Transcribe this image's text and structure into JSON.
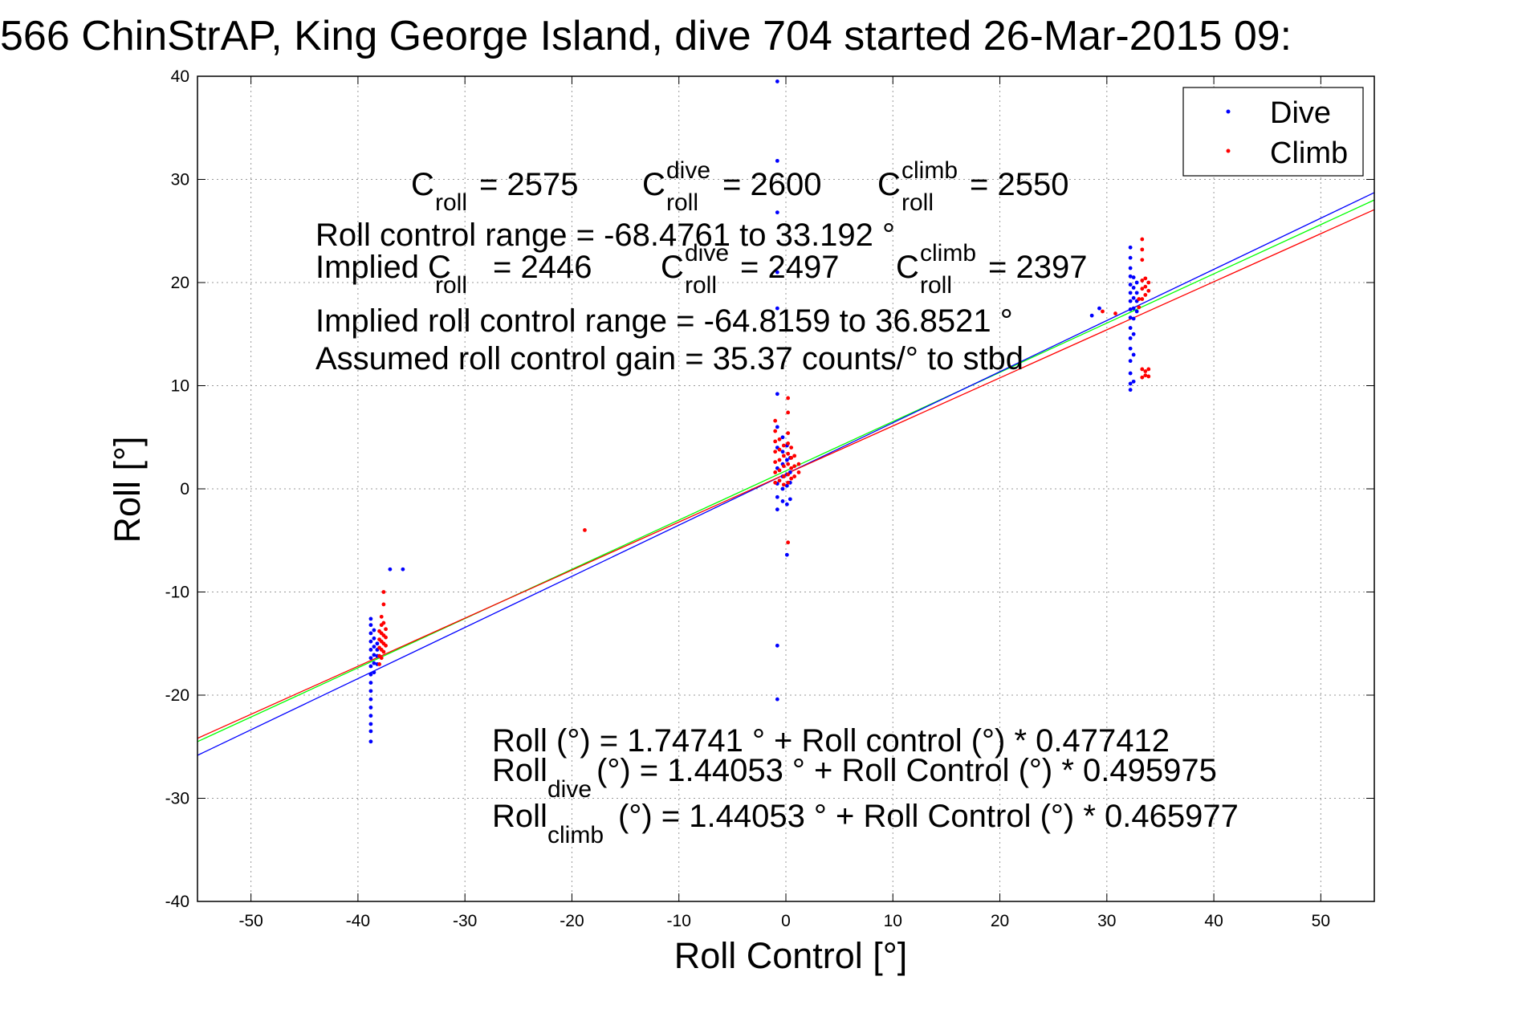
{
  "chart_data": {
    "type": "scatter",
    "title": "566 ChinStrAP, King George Island, dive 704 started 26-Mar-2015 09:",
    "xlabel": "Roll Control [°]",
    "ylabel": "Roll [°]",
    "xlim": [
      -55,
      55
    ],
    "ylim": [
      -40,
      40
    ],
    "xticks": [
      "-50",
      "-40",
      "-30",
      "-20",
      "-10",
      "0",
      "10",
      "20",
      "30",
      "40",
      "50"
    ],
    "yticks": [
      "40",
      "30",
      "20",
      "10",
      "0",
      "-10",
      "-20",
      "-30",
      "-40"
    ],
    "grid": true,
    "legend_position": "top-right",
    "legend": [
      {
        "label": "Dive",
        "color": "#0000ff"
      },
      {
        "label": "Climb",
        "color": "#ff0000"
      }
    ],
    "series": [
      {
        "name": "Dive",
        "color": "#0000ff",
        "points": [
          [
            -38.8,
            -24.5
          ],
          [
            -38.8,
            -23.5
          ],
          [
            -38.8,
            -22.8
          ],
          [
            -38.8,
            -22.0
          ],
          [
            -38.8,
            -21.2
          ],
          [
            -38.8,
            -20.4
          ],
          [
            -38.8,
            -19.6
          ],
          [
            -38.8,
            -18.8
          ],
          [
            -38.8,
            -18.0
          ],
          [
            -38.8,
            -17.2
          ],
          [
            -38.8,
            -16.4
          ],
          [
            -38.8,
            -15.6
          ],
          [
            -38.8,
            -14.8
          ],
          [
            -38.8,
            -14.0
          ],
          [
            -38.8,
            -13.2
          ],
          [
            -38.8,
            -12.6
          ],
          [
            -38.5,
            -17.8
          ],
          [
            -38.5,
            -16.9
          ],
          [
            -38.5,
            -16.1
          ],
          [
            -38.5,
            -15.3
          ],
          [
            -38.5,
            -14.5
          ],
          [
            -38.5,
            -13.7
          ],
          [
            -38.2,
            -17.0
          ],
          [
            -38.2,
            -16.2
          ],
          [
            -38.2,
            -15.6
          ],
          [
            -38.2,
            -15.0
          ],
          [
            -37.0,
            -7.8
          ],
          [
            -35.8,
            -7.8
          ],
          [
            -0.8,
            39.5
          ],
          [
            -0.8,
            31.8
          ],
          [
            -0.8,
            26.8
          ],
          [
            -0.8,
            21.0
          ],
          [
            -0.8,
            17.5
          ],
          [
            -0.8,
            9.2
          ],
          [
            -0.8,
            6.0
          ],
          [
            -0.8,
            4.0
          ],
          [
            -0.8,
            2.0
          ],
          [
            -0.8,
            0.5
          ],
          [
            -0.8,
            -0.8
          ],
          [
            -0.8,
            -2.0
          ],
          [
            -0.8,
            -15.2
          ],
          [
            -0.8,
            -20.4
          ],
          [
            -0.3,
            5.0
          ],
          [
            -0.3,
            3.6
          ],
          [
            -0.3,
            2.4
          ],
          [
            -0.3,
            1.2
          ],
          [
            -0.3,
            0.0
          ],
          [
            -0.3,
            -1.2
          ],
          [
            0.1,
            4.2
          ],
          [
            0.1,
            2.8
          ],
          [
            0.1,
            1.4
          ],
          [
            0.1,
            0.3
          ],
          [
            0.1,
            -1.5
          ],
          [
            0.1,
            -6.4
          ],
          [
            0.4,
            3.0
          ],
          [
            0.4,
            1.6
          ],
          [
            0.4,
            0.6
          ],
          [
            0.4,
            -1.0
          ],
          [
            28.6,
            16.8
          ],
          [
            29.3,
            17.5
          ],
          [
            32.2,
            23.4
          ],
          [
            32.2,
            22.4
          ],
          [
            32.2,
            21.4
          ],
          [
            32.2,
            20.6
          ],
          [
            32.2,
            19.8
          ],
          [
            32.2,
            19.0
          ],
          [
            32.2,
            18.2
          ],
          [
            32.2,
            17.4
          ],
          [
            32.2,
            16.6
          ],
          [
            32.2,
            15.6
          ],
          [
            32.2,
            14.6
          ],
          [
            32.2,
            13.6
          ],
          [
            32.2,
            12.4
          ],
          [
            32.2,
            11.2
          ],
          [
            32.2,
            10.2
          ],
          [
            32.2,
            9.6
          ],
          [
            32.5,
            20.5
          ],
          [
            32.5,
            19.5
          ],
          [
            32.5,
            18.5
          ],
          [
            32.5,
            17.5
          ],
          [
            32.5,
            16.5
          ],
          [
            32.5,
            15.0
          ],
          [
            32.5,
            13.0
          ],
          [
            32.5,
            10.4
          ],
          [
            32.8,
            20.0
          ],
          [
            32.8,
            19.0
          ],
          [
            32.8,
            18.2
          ],
          [
            32.8,
            17.2
          ]
        ]
      },
      {
        "name": "Climb",
        "color": "#ff0000",
        "points": [
          [
            -38.0,
            -17.0
          ],
          [
            -38.0,
            -16.2
          ],
          [
            -38.0,
            -15.4
          ],
          [
            -38.0,
            -14.6
          ],
          [
            -38.0,
            -13.8
          ],
          [
            -37.8,
            -16.4
          ],
          [
            -37.8,
            -15.6
          ],
          [
            -37.8,
            -14.8
          ],
          [
            -37.8,
            -14.0
          ],
          [
            -37.8,
            -13.2
          ],
          [
            -37.8,
            -12.4
          ],
          [
            -37.6,
            -15.8
          ],
          [
            -37.6,
            -15.0
          ],
          [
            -37.6,
            -14.2
          ],
          [
            -37.6,
            -13.0
          ],
          [
            -37.6,
            -11.2
          ],
          [
            -37.6,
            -10.0
          ],
          [
            -37.4,
            -15.2
          ],
          [
            -37.4,
            -14.4
          ],
          [
            -37.4,
            -13.6
          ],
          [
            -18.8,
            -4.0
          ],
          [
            -1.0,
            6.6
          ],
          [
            -1.0,
            5.6
          ],
          [
            -1.0,
            4.6
          ],
          [
            -1.0,
            3.6
          ],
          [
            -1.0,
            2.6
          ],
          [
            -1.0,
            1.6
          ],
          [
            -1.0,
            0.6
          ],
          [
            -0.6,
            4.8
          ],
          [
            -0.6,
            3.8
          ],
          [
            -0.6,
            2.8
          ],
          [
            -0.6,
            1.8
          ],
          [
            -0.6,
            0.8
          ],
          [
            -0.2,
            4.2
          ],
          [
            -0.2,
            3.2
          ],
          [
            -0.2,
            2.2
          ],
          [
            -0.2,
            1.2
          ],
          [
            -0.2,
            0.4
          ],
          [
            0.2,
            8.8
          ],
          [
            0.2,
            7.4
          ],
          [
            0.2,
            5.4
          ],
          [
            0.2,
            4.4
          ],
          [
            0.2,
            3.4
          ],
          [
            0.2,
            2.4
          ],
          [
            0.2,
            1.4
          ],
          [
            0.2,
            0.6
          ],
          [
            0.2,
            -5.2
          ],
          [
            0.5,
            4.0
          ],
          [
            0.5,
            3.0
          ],
          [
            0.5,
            2.0
          ],
          [
            0.5,
            1.0
          ],
          [
            0.8,
            3.2
          ],
          [
            0.8,
            2.2
          ],
          [
            0.8,
            1.2
          ],
          [
            1.2,
            2.4
          ],
          [
            1.2,
            1.6
          ],
          [
            29.6,
            17.2
          ],
          [
            30.8,
            17.0
          ],
          [
            33.0,
            18.4
          ],
          [
            33.0,
            17.6
          ],
          [
            33.3,
            24.2
          ],
          [
            33.3,
            23.2
          ],
          [
            33.3,
            22.2
          ],
          [
            33.3,
            20.2
          ],
          [
            33.3,
            19.4
          ],
          [
            33.3,
            18.4
          ],
          [
            33.3,
            11.6
          ],
          [
            33.3,
            10.8
          ],
          [
            33.6,
            20.4
          ],
          [
            33.6,
            19.6
          ],
          [
            33.6,
            18.8
          ],
          [
            33.6,
            11.4
          ],
          [
            33.6,
            11.0
          ],
          [
            33.9,
            20.0
          ],
          [
            33.9,
            19.2
          ],
          [
            33.9,
            11.6
          ],
          [
            33.9,
            10.9
          ]
        ]
      }
    ],
    "fit_lines": [
      {
        "name": "Roll",
        "color": "#00ff00",
        "intercept": 1.74741,
        "slope": 0.477412
      },
      {
        "name": "Roll_dive",
        "color": "#0000ff",
        "intercept": 1.44053,
        "slope": 0.495975
      },
      {
        "name": "Roll_climb",
        "color": "#ff0000",
        "intercept": 1.44053,
        "slope": 0.465977
      }
    ],
    "annotations": {
      "c_roll_label": "C",
      "roll_sub": "roll",
      "dive_sup": "dive",
      "climb_sup": "climb",
      "c_roll": "= 2575",
      "c_roll_dive": "= 2600",
      "c_roll_climb": "= 2550",
      "range_line": "Roll control range = -68.4761 to 33.192 °",
      "implied_prefix": "Implied C",
      "implied_c_roll": "= 2446",
      "implied_c_roll_dive": "= 2497",
      "implied_c_roll_climb": "= 2397",
      "implied_range_line": "Implied roll control range = -64.8159 to 36.8521 °",
      "gain_line": "Assumed roll control gain = 35.37 counts/° to stbd",
      "fit_all": "Roll (°) = 1.74741 ° + Roll control (°) * 0.477412",
      "roll_word": "Roll",
      "dive_word": "dive",
      "climb_word": "climb",
      "fit_dive_rest": "(°) = 1.44053 ° + Roll Control (°) * 0.495975",
      "fit_climb_rest": "(°) = 1.44053 ° + Roll Control (°) * 0.465977"
    }
  }
}
